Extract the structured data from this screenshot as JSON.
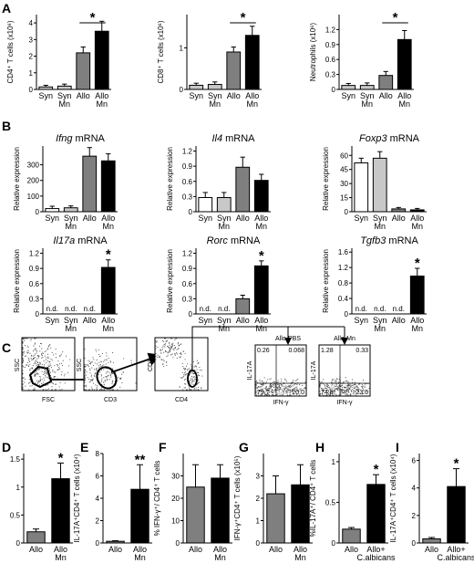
{
  "panel_letters": {
    "A": "A",
    "B": "B",
    "C": "C",
    "D": "D",
    "E": "E",
    "F": "F",
    "G": "G",
    "H": "H",
    "I": "I"
  },
  "flow": {
    "gate1": {
      "x": "FSC",
      "y": "SSC"
    },
    "gate2": {
      "x": "CD3",
      "y": "SSC"
    },
    "gate3": {
      "x": "CD4",
      "y": "CD8"
    },
    "pbs": {
      "title": "Allo-PBS",
      "x": "IFN-γ",
      "y": "IL-17A",
      "q_tl": "0.26",
      "q_tr": "0.068",
      "q_bl": "79.7",
      "q_br": "20.0"
    },
    "mn": {
      "title": "Allo-Mn",
      "x": "IFN-γ",
      "y": "IL-17A",
      "q_tl": "1.28",
      "q_tr": "0.33",
      "q_bl": "74.8",
      "q_br": "23.6"
    }
  },
  "colors": {
    "white": "#ffffff",
    "light_gray": "#c8c8c8",
    "dark_gray": "#7f7f7f",
    "black": "#000000"
  },
  "chart_data": [
    {
      "id": "A1",
      "type": "bar",
      "ylabel": "CD4⁺ T cells (x10⁶)",
      "categories": [
        "Syn",
        "Syn\nMn",
        "Allo",
        "Allo\nMn"
      ],
      "values": [
        0.15,
        0.2,
        2.2,
        3.5
      ],
      "errors": [
        0.1,
        0.12,
        0.35,
        0.6
      ],
      "colors": [
        "light_gray",
        "light_gray",
        "dark_gray",
        "black"
      ],
      "ylim": [
        0,
        4.5
      ],
      "yticks": [
        "0",
        "1",
        "2",
        "3",
        "4"
      ],
      "significance": {
        "label": "*",
        "from": 2,
        "to": 3
      }
    },
    {
      "id": "A2",
      "type": "bar",
      "ylabel": "CD8⁺ T cells (x10⁶)",
      "categories": [
        "Syn",
        "Syn\nMn",
        "Allo",
        "Allo\nMn"
      ],
      "values": [
        0.1,
        0.12,
        0.9,
        1.3
      ],
      "errors": [
        0.05,
        0.06,
        0.12,
        0.22
      ],
      "colors": [
        "light_gray",
        "light_gray",
        "dark_gray",
        "black"
      ],
      "ylim": [
        0,
        1.8
      ],
      "yticks": [
        "0",
        "1"
      ],
      "significance": {
        "label": "*",
        "from": 2,
        "to": 3
      }
    },
    {
      "id": "A3",
      "type": "bar",
      "ylabel": "Neutrophils (x10⁶)",
      "categories": [
        "Syn",
        "Syn\nMn",
        "Allo",
        "Allo\nMn"
      ],
      "values": [
        0.08,
        0.08,
        0.28,
        1.0
      ],
      "errors": [
        0.04,
        0.05,
        0.08,
        0.18
      ],
      "colors": [
        "light_gray",
        "light_gray",
        "dark_gray",
        "black"
      ],
      "ylim": [
        0,
        1.5
      ],
      "yticks": [
        "0",
        "0.3",
        "0.6",
        "0.9",
        "1.2"
      ],
      "significance": {
        "label": "*",
        "from": 2,
        "to": 3
      }
    },
    {
      "id": "B1",
      "type": "bar",
      "title": "Ifng mRNA",
      "ylabel": "Relative expression",
      "categories": [
        "Syn",
        "Syn\nMn",
        "Allo",
        "Allo\nMn"
      ],
      "values": [
        20,
        25,
        355,
        325
      ],
      "errors": [
        15,
        12,
        55,
        45
      ],
      "colors": [
        "white",
        "light_gray",
        "dark_gray",
        "black"
      ],
      "ylim": [
        0,
        420
      ],
      "yticks": [
        "0",
        "100",
        "200",
        "300"
      ]
    },
    {
      "id": "B2",
      "type": "bar",
      "title": "Il4 mRNA",
      "ylabel": "Relative expression",
      "categories": [
        "Syn",
        "Syn\nMn",
        "Allo",
        "Allo\nMn"
      ],
      "values": [
        0.28,
        0.28,
        0.88,
        0.62
      ],
      "errors": [
        0.1,
        0.1,
        0.2,
        0.12
      ],
      "colors": [
        "white",
        "light_gray",
        "dark_gray",
        "black"
      ],
      "ylim": [
        0,
        1.3
      ],
      "yticks": [
        "0",
        "0.3",
        "0.6",
        "0.9",
        "1.2"
      ]
    },
    {
      "id": "B3",
      "type": "bar",
      "title": "Foxp3 mRNA",
      "ylabel": "Relative expression",
      "categories": [
        "Syn",
        "Syn\nMn",
        "Allo",
        "Allo\nMn"
      ],
      "values": [
        52,
        57,
        3,
        2
      ],
      "errors": [
        5,
        7,
        1.5,
        1.5
      ],
      "colors": [
        "white",
        "light_gray",
        "dark_gray",
        "black"
      ],
      "ylim": [
        0,
        70
      ],
      "yticks": [
        "0",
        "15",
        "30",
        "45",
        "60"
      ]
    },
    {
      "id": "B4",
      "type": "bar",
      "title": "Il17a mRNA",
      "ylabel": "Relative expression",
      "categories": [
        "Syn",
        "Syn\nMn",
        "Allo",
        "Allo\nMn"
      ],
      "values": [
        0,
        0,
        0,
        0.92
      ],
      "errors": [
        0,
        0,
        0,
        0.15
      ],
      "colors": [
        "white",
        "light_gray",
        "dark_gray",
        "black"
      ],
      "ylim": [
        0,
        1.3
      ],
      "yticks": [
        "0",
        "0.3",
        "0.6",
        "0.9",
        "1.2"
      ],
      "nd_label": "n.d.",
      "nd": [
        0,
        1,
        2
      ],
      "significance": {
        "label": "*",
        "at": 3
      }
    },
    {
      "id": "B5",
      "type": "bar",
      "title": "Rorc mRNA",
      "ylabel": "Relative expression",
      "categories": [
        "Syn",
        "Syn\nMn",
        "Allo",
        "Allo\nMn"
      ],
      "values": [
        0,
        0,
        0.3,
        0.95
      ],
      "errors": [
        0,
        0,
        0.07,
        0.1
      ],
      "colors": [
        "white",
        "light_gray",
        "dark_gray",
        "black"
      ],
      "ylim": [
        0,
        1.3
      ],
      "yticks": [
        "0",
        "0.3",
        "0.6",
        "0.9",
        "1.2"
      ],
      "nd_label": "n.d.",
      "nd": [
        0,
        1
      ],
      "significance": {
        "label": "*",
        "at": 3
      }
    },
    {
      "id": "B6",
      "type": "bar",
      "title": "Tgfb3 mRNA",
      "ylabel": "Relative expression",
      "categories": [
        "Syn",
        "Syn\nMn",
        "Allo",
        "Allo\nMn"
      ],
      "values": [
        0,
        0,
        0,
        0.98
      ],
      "errors": [
        0,
        0,
        0,
        0.2
      ],
      "colors": [
        "white",
        "light_gray",
        "dark_gray",
        "black"
      ],
      "ylim": [
        0,
        1.7
      ],
      "yticks": [
        "0",
        "0.4",
        "0.8",
        "1.2",
        "1.6"
      ],
      "nd_label": "n.d.",
      "nd": [
        0,
        1,
        2
      ],
      "significance": {
        "label": "*",
        "at": 3
      }
    },
    {
      "id": "D",
      "type": "bar",
      "ylabel": "%IL-17A⁺/ CD4⁺ T cells",
      "categories": [
        "Allo",
        "Allo\nMn"
      ],
      "values": [
        0.2,
        1.15
      ],
      "errors": [
        0.05,
        0.28
      ],
      "colors": [
        "dark_gray",
        "black"
      ],
      "ylim": [
        0,
        1.6
      ],
      "yticks": [
        "0",
        "0.5",
        "1",
        "1.5"
      ],
      "significance": {
        "label": "*",
        "at": 1
      }
    },
    {
      "id": "E",
      "type": "bar",
      "ylabel": "IL-17A⁺CD4⁺ T cells (x10⁴)",
      "categories": [
        "Allo",
        "Allo\nMn"
      ],
      "values": [
        0.15,
        4.8
      ],
      "errors": [
        0.05,
        2.2
      ],
      "colors": [
        "dark_gray",
        "black"
      ],
      "ylim": [
        0,
        8
      ],
      "yticks": [
        "0",
        "2",
        "4",
        "6",
        "8"
      ],
      "significance": {
        "label": "**",
        "at": 1
      }
    },
    {
      "id": "F",
      "type": "bar",
      "ylabel": "% IFN-γ⁺/ CD4⁺ T cells",
      "categories": [
        "Allo",
        "Allo\nMn"
      ],
      "values": [
        25,
        29
      ],
      "errors": [
        10,
        6
      ],
      "colors": [
        "dark_gray",
        "black"
      ],
      "ylim": [
        0,
        40
      ],
      "yticks": [
        "0",
        "10",
        "20",
        "30"
      ]
    },
    {
      "id": "G",
      "type": "bar",
      "ylabel": "IFN-γ⁺CD4⁺ T cells (x10⁵)",
      "categories": [
        "Allo",
        "Allo\nMn"
      ],
      "values": [
        2.2,
        2.6
      ],
      "errors": [
        0.8,
        0.9
      ],
      "colors": [
        "dark_gray",
        "black"
      ],
      "ylim": [
        0,
        4
      ],
      "yticks": [
        "0",
        "1",
        "2",
        "3"
      ]
    },
    {
      "id": "H",
      "type": "bar",
      "ylabel": "%IL-17A⁺/ CD4⁺ T cells",
      "categories": [
        "Allo",
        "Allo+\nC.albicans"
      ],
      "values": [
        0.17,
        0.72
      ],
      "errors": [
        0.02,
        0.12
      ],
      "colors": [
        "dark_gray",
        "black"
      ],
      "ylim": [
        0,
        1.1
      ],
      "yticks": [
        "0",
        "0.5",
        "1"
      ],
      "significance": {
        "label": "*",
        "at": 1
      }
    },
    {
      "id": "I",
      "type": "bar",
      "ylabel": "IL-17A⁺CD4⁺ T cells (x10⁴)",
      "categories": [
        "Allo",
        "Allo+\nC.albicans"
      ],
      "values": [
        0.3,
        4.1
      ],
      "errors": [
        0.1,
        1.3
      ],
      "colors": [
        "dark_gray",
        "black"
      ],
      "ylim": [
        0,
        6.5
      ],
      "yticks": [
        "0",
        "2",
        "4",
        "6"
      ],
      "significance": {
        "label": "*",
        "at": 1
      }
    }
  ]
}
